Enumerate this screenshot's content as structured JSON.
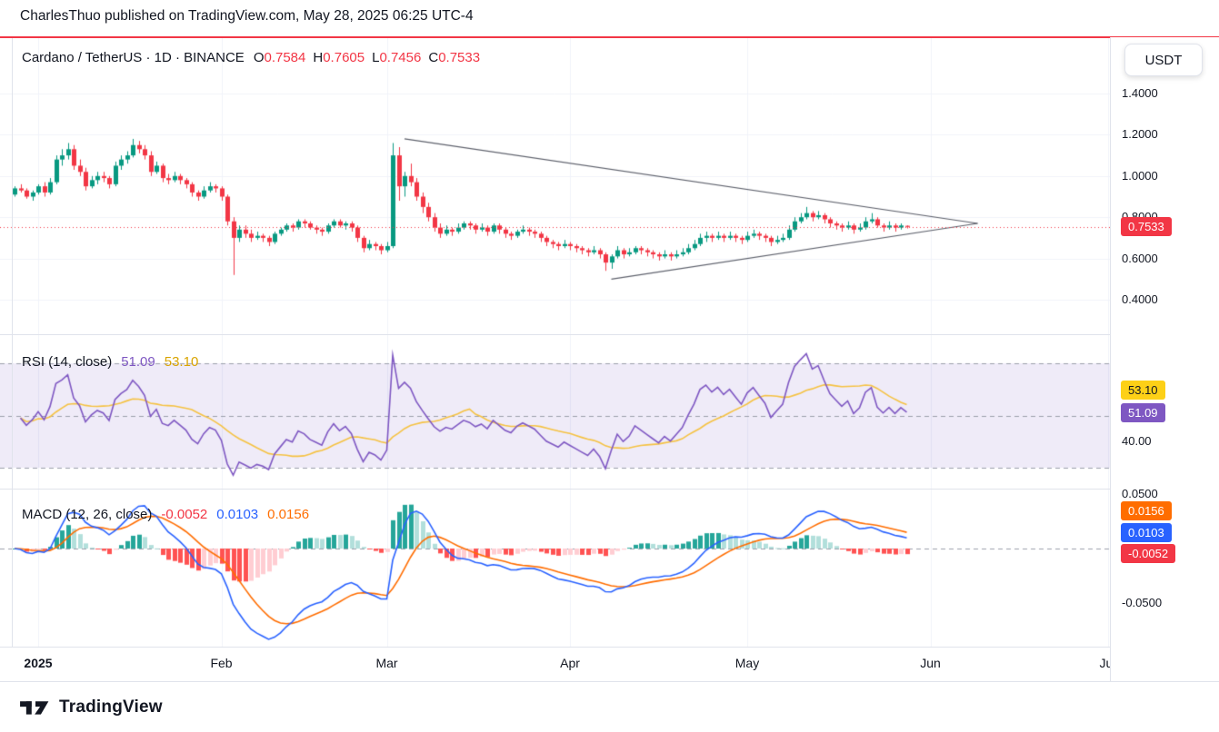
{
  "header": {
    "publish_line": "CharlesThuo published on TradingView.com, May 28, 2025 06:25 UTC-4"
  },
  "toolbar": {
    "currency_button": "USDT"
  },
  "main_chart": {
    "legend": {
      "title": "Cardano / TetherUS · 1D · BINANCE",
      "o_label": "O",
      "o": "0.7584",
      "h_label": "H",
      "h": "0.7605",
      "l_label": "L",
      "l": "0.7456",
      "c_label": "C",
      "c": "0.7533"
    },
    "price_scale_labels": [
      "1.4000",
      "1.2000",
      "1.0000",
      "0.8000",
      "0.6000",
      "0.4000"
    ],
    "last_price_badge": "0.7533"
  },
  "rsi_panel": {
    "title": "RSI (14, close)",
    "value_rsi": "51.09",
    "value_ma": "53.10",
    "badge_ma": "53.10",
    "badge_rsi": "51.09",
    "axis_label": "40.00"
  },
  "macd_panel": {
    "title": "MACD (12, 26, close)",
    "value_hist": "-0.0052",
    "value_macd": "0.0103",
    "value_signal": "0.0156",
    "badge_signal": "0.0156",
    "badge_macd": "0.0103",
    "badge_hist": "-0.0052",
    "axis_top": "0.0500",
    "axis_bottom": "-0.0500"
  },
  "footer": {
    "brand": "TradingView"
  },
  "colors": {
    "accent_red": "#f23645",
    "candle_up": "#089981",
    "candle_down": "#f23645",
    "grid": "#f0f3fa",
    "separator": "#e0e3eb",
    "rsi_line": "#7e57c2",
    "rsi_ma_line": "#f5c242",
    "rsi_band_fill": "rgba(126,87,194,0.12)",
    "rsi_levels": "#9b9fab",
    "macd_line": "#2962ff",
    "signal_line": "#ff6d00",
    "hist_up": "#26a69a",
    "hist_up_weak": "#b2dfdb",
    "hist_down": "#ff5252",
    "hist_down_weak": "#ffcdd2",
    "pattern_line": "#5d606b",
    "badge_yellow": "#fdd017",
    "text": "#131722"
  },
  "chart_data": {
    "type": "candlestick",
    "symbol": "Cardano / TetherUS (ADA/USDT)",
    "interval": "1D",
    "exchange": "BINANCE",
    "ohlc_last": {
      "open": 0.7584,
      "high": 0.7605,
      "low": 0.7456,
      "close": 0.7533
    },
    "last_close": 0.7533,
    "price_axis": {
      "min": 0.4,
      "max": 1.4,
      "ticks": [
        1.4,
        1.2,
        1.0,
        0.8,
        0.6,
        0.4
      ]
    },
    "month_ticks": [
      {
        "index": 4,
        "label": "2025"
      },
      {
        "index": 35,
        "label": "Feb"
      },
      {
        "index": 63,
        "label": "Mar"
      },
      {
        "index": 94,
        "label": "Apr"
      },
      {
        "index": 124,
        "label": "May"
      },
      {
        "index": 155,
        "label": "Jun"
      },
      {
        "index": 185,
        "label": "Jul"
      }
    ],
    "pattern": {
      "type": "symmetrical-triangle",
      "lines": [
        [
          [
            66,
            1.18
          ],
          [
            163,
            0.77
          ]
        ],
        [
          [
            101,
            0.5
          ],
          [
            163,
            0.77
          ]
        ]
      ]
    },
    "indicators": {
      "rsi": {
        "length": 14,
        "source": "close",
        "last": 51.09,
        "ma_last": 53.1,
        "levels": [
          70,
          50,
          30
        ],
        "visible_axis_tick": 40
      },
      "macd": {
        "fast": 12,
        "slow": 26,
        "source": "close",
        "signal_length": 9,
        "last_histogram": -0.0052,
        "last_macd": 0.0103,
        "last_signal": 0.0156,
        "axis_ticks": [
          0.05,
          -0.05
        ]
      }
    },
    "ohlc": [
      [
        0.91,
        0.95,
        0.9,
        0.94
      ],
      [
        0.94,
        0.96,
        0.92,
        0.93
      ],
      [
        0.93,
        0.94,
        0.89,
        0.9
      ],
      [
        0.9,
        0.93,
        0.88,
        0.92
      ],
      [
        0.92,
        0.96,
        0.91,
        0.95
      ],
      [
        0.95,
        0.97,
        0.9,
        0.92
      ],
      [
        0.92,
        0.99,
        0.91,
        0.97
      ],
      [
        0.97,
        1.1,
        0.96,
        1.08
      ],
      [
        1.08,
        1.13,
        1.05,
        1.1
      ],
      [
        1.1,
        1.16,
        1.08,
        1.13
      ],
      [
        1.13,
        1.15,
        1.03,
        1.05
      ],
      [
        1.05,
        1.08,
        1.0,
        1.02
      ],
      [
        1.02,
        1.04,
        0.93,
        0.95
      ],
      [
        0.95,
        1.0,
        0.94,
        0.98
      ],
      [
        0.98,
        1.02,
        0.96,
        1.0
      ],
      [
        1.0,
        1.02,
        0.97,
        0.99
      ],
      [
        0.99,
        1.0,
        0.94,
        0.96
      ],
      [
        0.96,
        1.07,
        0.95,
        1.05
      ],
      [
        1.05,
        1.1,
        1.03,
        1.08
      ],
      [
        1.08,
        1.12,
        1.06,
        1.1
      ],
      [
        1.1,
        1.18,
        1.09,
        1.15
      ],
      [
        1.15,
        1.17,
        1.11,
        1.13
      ],
      [
        1.13,
        1.15,
        1.08,
        1.1
      ],
      [
        1.1,
        1.12,
        1.0,
        1.02
      ],
      [
        1.02,
        1.07,
        1.01,
        1.05
      ],
      [
        1.05,
        1.06,
        0.97,
        0.99
      ],
      [
        0.99,
        1.01,
        0.96,
        0.98
      ],
      [
        0.98,
        1.02,
        0.97,
        1.0
      ],
      [
        1.0,
        1.01,
        0.96,
        0.98
      ],
      [
        0.98,
        0.99,
        0.94,
        0.96
      ],
      [
        0.96,
        0.97,
        0.9,
        0.92
      ],
      [
        0.92,
        0.93,
        0.88,
        0.9
      ],
      [
        0.9,
        0.95,
        0.89,
        0.93
      ],
      [
        0.93,
        0.97,
        0.92,
        0.95
      ],
      [
        0.95,
        0.96,
        0.92,
        0.94
      ],
      [
        0.94,
        0.95,
        0.88,
        0.9
      ],
      [
        0.9,
        0.91,
        0.76,
        0.78
      ],
      [
        0.78,
        0.8,
        0.52,
        0.7
      ],
      [
        0.7,
        0.76,
        0.68,
        0.74
      ],
      [
        0.74,
        0.76,
        0.7,
        0.72
      ],
      [
        0.72,
        0.74,
        0.68,
        0.7
      ],
      [
        0.7,
        0.73,
        0.69,
        0.71
      ],
      [
        0.71,
        0.72,
        0.68,
        0.7
      ],
      [
        0.7,
        0.71,
        0.66,
        0.68
      ],
      [
        0.68,
        0.73,
        0.67,
        0.72
      ],
      [
        0.72,
        0.75,
        0.71,
        0.74
      ],
      [
        0.74,
        0.77,
        0.73,
        0.76
      ],
      [
        0.76,
        0.77,
        0.73,
        0.75
      ],
      [
        0.75,
        0.79,
        0.74,
        0.78
      ],
      [
        0.78,
        0.79,
        0.75,
        0.77
      ],
      [
        0.77,
        0.78,
        0.74,
        0.75
      ],
      [
        0.75,
        0.76,
        0.72,
        0.74
      ],
      [
        0.74,
        0.75,
        0.71,
        0.73
      ],
      [
        0.73,
        0.77,
        0.72,
        0.76
      ],
      [
        0.76,
        0.79,
        0.75,
        0.78
      ],
      [
        0.78,
        0.79,
        0.75,
        0.76
      ],
      [
        0.76,
        0.78,
        0.74,
        0.77
      ],
      [
        0.77,
        0.78,
        0.73,
        0.75
      ],
      [
        0.75,
        0.76,
        0.68,
        0.7
      ],
      [
        0.7,
        0.71,
        0.63,
        0.65
      ],
      [
        0.65,
        0.69,
        0.64,
        0.67
      ],
      [
        0.67,
        0.68,
        0.64,
        0.66
      ],
      [
        0.66,
        0.67,
        0.62,
        0.64
      ],
      [
        0.64,
        0.68,
        0.63,
        0.66
      ],
      [
        0.66,
        1.16,
        0.65,
        1.1
      ],
      [
        1.1,
        1.14,
        0.88,
        0.95
      ],
      [
        0.95,
        1.02,
        0.9,
        1.0
      ],
      [
        1.0,
        1.06,
        0.95,
        0.97
      ],
      [
        0.97,
        0.99,
        0.88,
        0.9
      ],
      [
        0.9,
        0.92,
        0.82,
        0.85
      ],
      [
        0.85,
        0.87,
        0.78,
        0.8
      ],
      [
        0.8,
        0.82,
        0.73,
        0.75
      ],
      [
        0.75,
        0.77,
        0.7,
        0.72
      ],
      [
        0.72,
        0.76,
        0.71,
        0.74
      ],
      [
        0.74,
        0.75,
        0.71,
        0.73
      ],
      [
        0.73,
        0.77,
        0.72,
        0.75
      ],
      [
        0.75,
        0.78,
        0.74,
        0.77
      ],
      [
        0.77,
        0.78,
        0.74,
        0.76
      ],
      [
        0.76,
        0.77,
        0.72,
        0.74
      ],
      [
        0.74,
        0.77,
        0.73,
        0.75
      ],
      [
        0.75,
        0.76,
        0.71,
        0.73
      ],
      [
        0.73,
        0.77,
        0.72,
        0.76
      ],
      [
        0.76,
        0.77,
        0.72,
        0.74
      ],
      [
        0.74,
        0.75,
        0.7,
        0.72
      ],
      [
        0.72,
        0.73,
        0.69,
        0.71
      ],
      [
        0.71,
        0.74,
        0.7,
        0.73
      ],
      [
        0.73,
        0.76,
        0.72,
        0.74
      ],
      [
        0.74,
        0.75,
        0.71,
        0.73
      ],
      [
        0.73,
        0.74,
        0.7,
        0.72
      ],
      [
        0.72,
        0.73,
        0.68,
        0.7
      ],
      [
        0.7,
        0.71,
        0.66,
        0.68
      ],
      [
        0.68,
        0.69,
        0.65,
        0.67
      ],
      [
        0.67,
        0.68,
        0.64,
        0.66
      ],
      [
        0.66,
        0.69,
        0.65,
        0.67
      ],
      [
        0.67,
        0.68,
        0.64,
        0.66
      ],
      [
        0.66,
        0.67,
        0.63,
        0.65
      ],
      [
        0.65,
        0.66,
        0.62,
        0.64
      ],
      [
        0.64,
        0.65,
        0.61,
        0.63
      ],
      [
        0.63,
        0.66,
        0.62,
        0.64
      ],
      [
        0.64,
        0.65,
        0.6,
        0.62
      ],
      [
        0.62,
        0.63,
        0.54,
        0.58
      ],
      [
        0.58,
        0.62,
        0.55,
        0.61
      ],
      [
        0.61,
        0.66,
        0.6,
        0.64
      ],
      [
        0.64,
        0.65,
        0.6,
        0.62
      ],
      [
        0.62,
        0.65,
        0.61,
        0.63
      ],
      [
        0.63,
        0.66,
        0.62,
        0.65
      ],
      [
        0.65,
        0.66,
        0.62,
        0.64
      ],
      [
        0.64,
        0.65,
        0.61,
        0.63
      ],
      [
        0.63,
        0.64,
        0.6,
        0.62
      ],
      [
        0.62,
        0.63,
        0.59,
        0.61
      ],
      [
        0.61,
        0.64,
        0.6,
        0.62
      ],
      [
        0.62,
        0.63,
        0.59,
        0.61
      ],
      [
        0.61,
        0.64,
        0.6,
        0.62
      ],
      [
        0.62,
        0.65,
        0.61,
        0.63
      ],
      [
        0.63,
        0.67,
        0.62,
        0.65
      ],
      [
        0.65,
        0.69,
        0.64,
        0.67
      ],
      [
        0.67,
        0.72,
        0.66,
        0.7
      ],
      [
        0.7,
        0.73,
        0.68,
        0.71
      ],
      [
        0.71,
        0.72,
        0.68,
        0.7
      ],
      [
        0.7,
        0.73,
        0.69,
        0.71
      ],
      [
        0.71,
        0.72,
        0.68,
        0.7
      ],
      [
        0.7,
        0.73,
        0.69,
        0.71
      ],
      [
        0.71,
        0.72,
        0.68,
        0.7
      ],
      [
        0.7,
        0.71,
        0.67,
        0.69
      ],
      [
        0.69,
        0.73,
        0.68,
        0.71
      ],
      [
        0.71,
        0.74,
        0.7,
        0.72
      ],
      [
        0.72,
        0.73,
        0.69,
        0.71
      ],
      [
        0.71,
        0.72,
        0.68,
        0.7
      ],
      [
        0.7,
        0.71,
        0.66,
        0.68
      ],
      [
        0.68,
        0.71,
        0.67,
        0.69
      ],
      [
        0.69,
        0.72,
        0.68,
        0.7
      ],
      [
        0.7,
        0.76,
        0.69,
        0.74
      ],
      [
        0.74,
        0.8,
        0.73,
        0.78
      ],
      [
        0.78,
        0.82,
        0.77,
        0.8
      ],
      [
        0.8,
        0.85,
        0.79,
        0.82
      ],
      [
        0.82,
        0.83,
        0.78,
        0.8
      ],
      [
        0.8,
        0.83,
        0.79,
        0.81
      ],
      [
        0.81,
        0.82,
        0.77,
        0.79
      ],
      [
        0.79,
        0.8,
        0.75,
        0.77
      ],
      [
        0.77,
        0.78,
        0.74,
        0.76
      ],
      [
        0.76,
        0.77,
        0.73,
        0.75
      ],
      [
        0.75,
        0.78,
        0.74,
        0.76
      ],
      [
        0.76,
        0.77,
        0.72,
        0.74
      ],
      [
        0.74,
        0.77,
        0.73,
        0.75
      ],
      [
        0.75,
        0.8,
        0.74,
        0.78
      ],
      [
        0.78,
        0.82,
        0.77,
        0.79
      ],
      [
        0.79,
        0.8,
        0.75,
        0.76
      ],
      [
        0.76,
        0.77,
        0.73,
        0.75
      ],
      [
        0.75,
        0.78,
        0.74,
        0.76
      ],
      [
        0.76,
        0.77,
        0.73,
        0.75
      ],
      [
        0.75,
        0.77,
        0.74,
        0.76
      ],
      [
        0.7584,
        0.7605,
        0.7456,
        0.7533
      ]
    ]
  }
}
